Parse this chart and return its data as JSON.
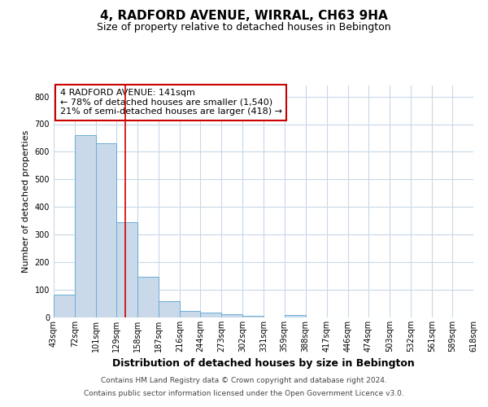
{
  "title": "4, RADFORD AVENUE, WIRRAL, CH63 9HA",
  "subtitle": "Size of property relative to detached houses in Bebington",
  "xlabel": "Distribution of detached houses by size in Bebington",
  "ylabel": "Number of detached properties",
  "bin_edges": [
    43,
    72,
    101,
    129,
    158,
    187,
    216,
    244,
    273,
    302,
    331,
    359,
    388,
    417,
    446,
    474,
    503,
    532,
    561,
    589,
    618
  ],
  "bar_heights": [
    83,
    660,
    630,
    345,
    148,
    58,
    25,
    17,
    13,
    7,
    0,
    8,
    0,
    0,
    0,
    0,
    0,
    0,
    0,
    0
  ],
  "bar_color": "#c9d9ea",
  "bar_edge_color": "#6baed6",
  "property_line_x": 141,
  "property_line_color": "#cc0000",
  "ylim": [
    0,
    840
  ],
  "yticks": [
    0,
    100,
    200,
    300,
    400,
    500,
    600,
    700,
    800
  ],
  "annotation_title": "4 RADFORD AVENUE: 141sqm",
  "annotation_line1": "← 78% of detached houses are smaller (1,540)",
  "annotation_line2": "21% of semi-detached houses are larger (418) →",
  "annotation_box_color": "#cc0000",
  "footnote1": "Contains HM Land Registry data © Crown copyright and database right 2024.",
  "footnote2": "Contains public sector information licensed under the Open Government Licence v3.0.",
  "background_color": "#ffffff",
  "grid_color": "#c8d8e8",
  "title_fontsize": 11,
  "subtitle_fontsize": 9,
  "ylabel_fontsize": 8,
  "xlabel_fontsize": 9,
  "tick_fontsize": 7,
  "annot_fontsize": 8,
  "footnote_fontsize": 6.5
}
